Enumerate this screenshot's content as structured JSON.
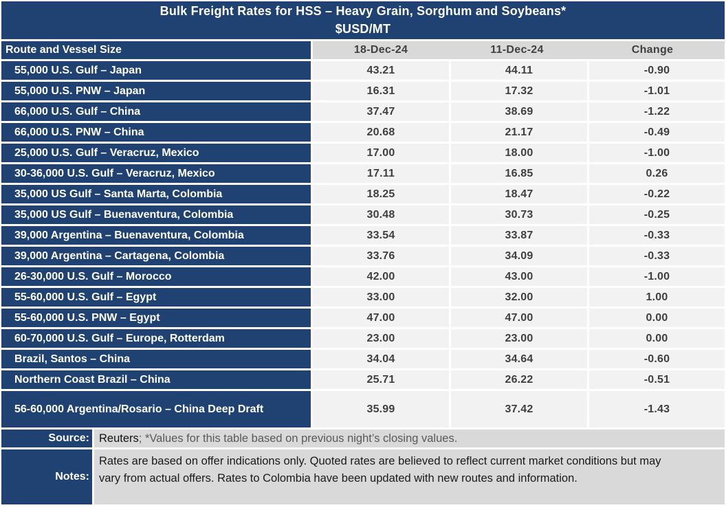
{
  "colors": {
    "navy": "#1F4273",
    "header_gray": "#D9D9D9",
    "cell_gray": "#F2F2F2",
    "header_text": "#404040",
    "value_text": "#3f3f3f",
    "source_muted_text": "#595959"
  },
  "title": {
    "line1": "Bulk Freight Rates for HSS – Heavy Grain, Sorghum and Soybeans*",
    "line2": "$USD/MT"
  },
  "table": {
    "header": {
      "route": "Route and Vessel Size",
      "col1": "18-Dec-24",
      "col2": "11-Dec-24",
      "col3": "Change"
    },
    "rows": [
      {
        "route": "55,000 U.S. Gulf – Japan",
        "d18": "43.21",
        "d11": "44.11",
        "change": "-0.90"
      },
      {
        "route": "55,000 U.S. PNW – Japan",
        "d18": "16.31",
        "d11": "17.32",
        "change": "-1.01"
      },
      {
        "route": "66,000 U.S. Gulf – China",
        "d18": "37.47",
        "d11": "38.69",
        "change": "-1.22"
      },
      {
        "route": "66,000 U.S. PNW – China",
        "d18": "20.68",
        "d11": "21.17",
        "change": "-0.49"
      },
      {
        "route": "25,000 U.S. Gulf – Veracruz, Mexico",
        "d18": "17.00",
        "d11": "18.00",
        "change": "-1.00"
      },
      {
        "route": "30-36,000 U.S. Gulf – Veracruz, Mexico",
        "d18": "17.11",
        "d11": "16.85",
        "change": "0.26"
      },
      {
        "route": "35,000 US Gulf – Santa Marta, Colombia",
        "d18": "18.25",
        "d11": "18.47",
        "change": "-0.22"
      },
      {
        "route": "35,000 US Gulf – Buenaventura, Colombia",
        "d18": "30.48",
        "d11": "30.73",
        "change": "-0.25"
      },
      {
        "route": "39,000 Argentina – Buenaventura, Colombia",
        "d18": "33.54",
        "d11": "33.87",
        "change": "-0.33"
      },
      {
        "route": "39,000 Argentina – Cartagena, Colombia",
        "d18": "33.76",
        "d11": "34.09",
        "change": "-0.33"
      },
      {
        "route": "26-30,000 U.S. Gulf – Morocco",
        "d18": "42.00",
        "d11": "43.00",
        "change": "-1.00"
      },
      {
        "route": "55-60,000 U.S. Gulf – Egypt",
        "d18": "33.00",
        "d11": "32.00",
        "change": "1.00"
      },
      {
        "route": "55-60,000 U.S. PNW – Egypt",
        "d18": "47.00",
        "d11": "47.00",
        "change": "0.00"
      },
      {
        "route": "60-70,000 U.S. Gulf – Europe, Rotterdam",
        "d18": "23.00",
        "d11": "23.00",
        "change": "0.00"
      },
      {
        "route": "Brazil, Santos – China",
        "d18": "34.04",
        "d11": "34.64",
        "change": "-0.60"
      },
      {
        "route": "Northern Coast Brazil – China",
        "d18": "25.71",
        "d11": "26.22",
        "change": "-0.51"
      },
      {
        "route": "56-60,000 Argentina/Rosario – China Deep Draft",
        "d18": "35.99",
        "d11": "37.42",
        "change": "-1.43",
        "tall": true
      }
    ]
  },
  "source": {
    "label": "Source:",
    "name": "Reuters",
    "rest": "; *Values for this table based on previous night’s closing values."
  },
  "notes": {
    "label": "Notes:",
    "text": "Rates are based on offer indications only. Quoted rates are believed to reflect current market conditions but may vary from actual offers. Rates to Colombia have been updated with new routes and information."
  }
}
